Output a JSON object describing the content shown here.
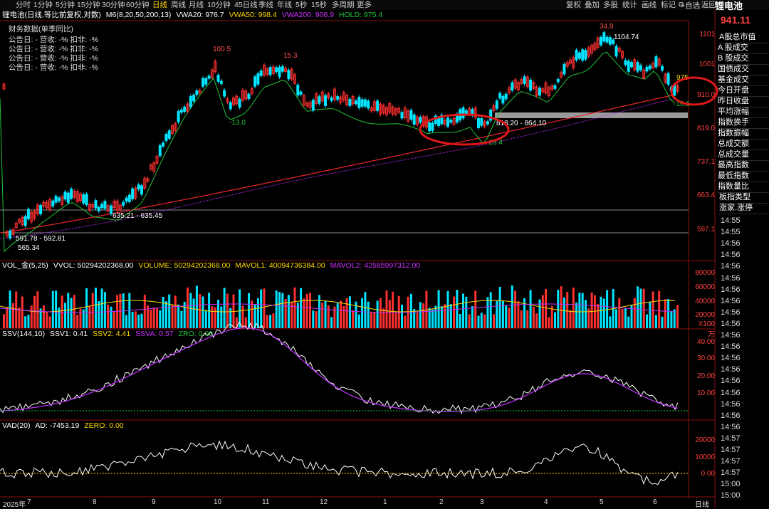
{
  "toolbar": {
    "periods": [
      "分时",
      "1分钟",
      "5分钟",
      "15分钟",
      "30分钟",
      "60分钟",
      "日线",
      "周线",
      "月线",
      "10分钟",
      "45日线",
      "季线",
      "年线",
      "5秒",
      "15秒",
      "多周期",
      "更多"
    ],
    "active_period": "日线",
    "right": [
      "复权",
      "叠加",
      "多股",
      "统计",
      "画线",
      "标记"
    ],
    "self_select": "+自选",
    "back": "返回"
  },
  "header": {
    "title": "锂电池",
    "price": "941.11"
  },
  "sidebar": {
    "items": [
      "A股总市值",
      "A 股成交",
      "B 股成交",
      "国债成交",
      "基金成交",
      "今日开盘",
      "昨日收盘",
      "平均涨幅",
      "指数换手",
      "指数振幅",
      "总成交额",
      "总成交量",
      "最高指数",
      "最低指数",
      "指数量比",
      "板指类型",
      "涨家.涨停"
    ],
    "times": [
      "14:55",
      "14:55",
      "14:56",
      "14:56",
      "14:56",
      "14:56",
      "14:56",
      "14:56",
      "14:56",
      "14:56",
      "14:56",
      "14:56",
      "14:56",
      "14:56",
      "14:56",
      "14:56",
      "14:56",
      "14:56",
      "14:56",
      "14:57",
      "14:57",
      "14:57",
      "14:57",
      "15:00",
      "15:00"
    ]
  },
  "main_panel": {
    "title": "锂电池(日线,等比前复权,对数)",
    "indicator": "M6(8,20,50,200,13)",
    "vwa20": "VWA20: 976.7",
    "vwa50": "VWA50: 998.4",
    "vwa200": "VWA200: 906.9",
    "hold": "HOLD: 975.4",
    "finance_header": "财务数据(单季同比)",
    "finance_row": "公告日: -    营收:  -%    扣非:  -%",
    "yaxis": [
      "1101",
      "1001",
      "910.0",
      "819.0",
      "737.1",
      "663.4",
      "597.1"
    ],
    "annotations": [
      "100.5",
      "15.3",
      "-13.0",
      "34.9",
      "1104.74",
      "975",
      "-16.1",
      "-13.4",
      "635.21 - 635.45",
      "591.78 - 592.81",
      "565.34",
      "818.20 - 864.10"
    ]
  },
  "volume_panel": {
    "name": "VOL_金(5,25)",
    "vvol": "VVOL: 50294202368.00",
    "volume": "VOLUME: 50294202368.00",
    "mavol1": "MAVOL1: 40094736384.00",
    "mavol2": "MAVOL2: 42585997312.00",
    "yaxis": [
      "80000",
      "60000",
      "40000",
      "20000"
    ],
    "unit": "X100万"
  },
  "ssv_panel": {
    "name": "SSV(144,10)",
    "ssv1": "SSV1: 0.41",
    "ssv2": "SSV2: 4.41",
    "ssva": "SSVA: 0.57",
    "zro": "ZRO: 0.00",
    "yaxis": [
      "40.00",
      "30.00",
      "20.00",
      "10.00"
    ]
  },
  "vad_panel": {
    "name": "VAD(20)",
    "ad": "AD: -7453.19",
    "zero": "ZERO: 0.00",
    "yaxis": [
      "20000",
      "10000",
      "0.00"
    ]
  },
  "xaxis": {
    "labels": [
      "2025年",
      "7",
      "8",
      "9",
      "10",
      "11",
      "12",
      "1",
      "2",
      "3",
      "4",
      "5",
      "6"
    ],
    "mode": "日线"
  },
  "colors": {
    "up": "#ff3030",
    "down": "#00e5ff",
    "ma200": "#e0242b",
    "vwa": "#22c33a",
    "vwa200": "#c030ff",
    "yellow": "#ffd700",
    "highlight": "#e01818"
  }
}
